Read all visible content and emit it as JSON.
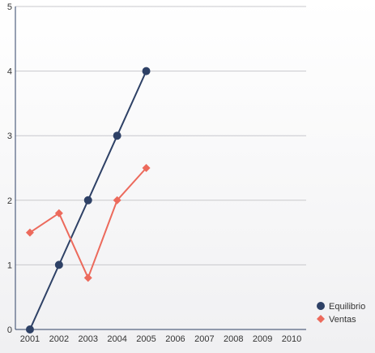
{
  "chart_data": {
    "type": "line",
    "title": "",
    "xlabel": "",
    "ylabel": "",
    "x": [
      "2001",
      "2002",
      "2003",
      "2004",
      "2005",
      "2006",
      "2007",
      "2008",
      "2009",
      "2010"
    ],
    "yticks": [
      0,
      1,
      2,
      3,
      4,
      5
    ],
    "ylim": [
      0,
      5
    ],
    "grid": true,
    "legend_position": "bottom-right",
    "series": [
      {
        "name": "Equilibrio",
        "color": "#2e4166",
        "marker": "circle",
        "values": [
          0,
          1,
          2,
          3,
          4,
          null,
          null,
          null,
          null,
          null
        ]
      },
      {
        "name": "Ventas",
        "color": "#ec6a5c",
        "marker": "diamond",
        "values": [
          1.5,
          1.8,
          0.8,
          2,
          2.5,
          null,
          null,
          null,
          null,
          null
        ]
      }
    ]
  }
}
